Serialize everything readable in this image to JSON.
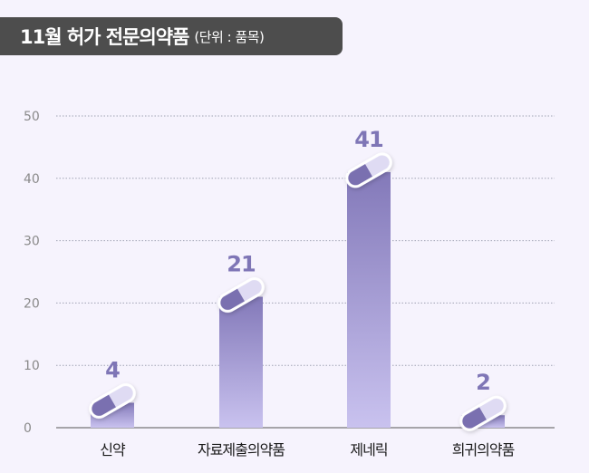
{
  "header": {
    "title": "11월 허가 전문의약품",
    "unit": "(단위 : 품목)"
  },
  "chart_data": {
    "type": "bar",
    "categories": [
      "신약",
      "자료제출의약품",
      "제네릭",
      "희귀의약품"
    ],
    "values": [
      4,
      21,
      41,
      2
    ],
    "ylim": [
      0,
      50
    ],
    "yticks": [
      0,
      10,
      20,
      30,
      40,
      50
    ],
    "grid": true,
    "data_labels": true,
    "colors": {
      "bar_top": "#8379b9",
      "bar_bottom": "#c9c2ef",
      "value_label": "#7f76b6",
      "pill_dark": "#7a70b0",
      "pill_light": "#dfdbf3"
    }
  }
}
